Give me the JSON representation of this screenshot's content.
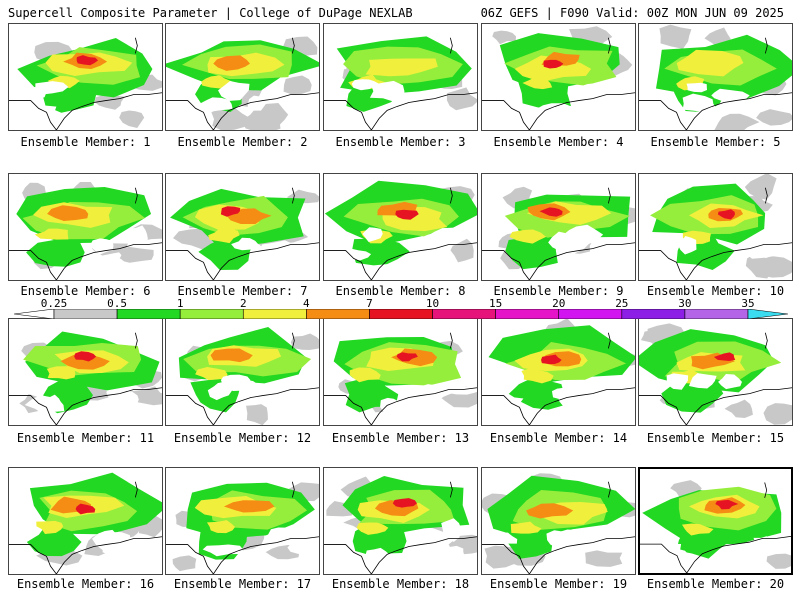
{
  "header": {
    "title": "Supercell Composite Parameter | College of DuPage NEXLAB",
    "run_info": "06Z GEFS | F090 Valid: 00Z MON JUN 09 2025"
  },
  "colors": {
    "very_low": "#c8c8c8",
    "low": "#22d822",
    "low_mid": "#96ee3c",
    "mid": "#f0f03c",
    "high": "#f58c14",
    "very_high": "#e61423",
    "border_line": "#000000"
  },
  "colorbar": {
    "thresholds": [
      "0.25",
      "0.5",
      "1",
      "2",
      "4",
      "7",
      "10",
      "15",
      "20",
      "25",
      "30",
      "35"
    ],
    "segment_colors": [
      "#ffffff",
      "#c8c8c8",
      "#22d822",
      "#96ee3c",
      "#f0f03c",
      "#f58c14",
      "#e61423",
      "#e6147a",
      "#e614c8",
      "#d214f0",
      "#8c1ee6",
      "#b464e6",
      "#3cdcf0"
    ]
  },
  "members": [
    {
      "label": "Ensemble Member: 1",
      "intensity": 4
    },
    {
      "label": "Ensemble Member: 2",
      "intensity": 3
    },
    {
      "label": "Ensemble Member: 3",
      "intensity": 2
    },
    {
      "label": "Ensemble Member: 4",
      "intensity": 4
    },
    {
      "label": "Ensemble Member: 5",
      "intensity": 2
    },
    {
      "label": "Ensemble Member: 6",
      "intensity": 3
    },
    {
      "label": "Ensemble Member: 7",
      "intensity": 4
    },
    {
      "label": "Ensemble Member: 8",
      "intensity": 4
    },
    {
      "label": "Ensemble Member: 9",
      "intensity": 4
    },
    {
      "label": "Ensemble Member: 10",
      "intensity": 4
    },
    {
      "label": "Ensemble Member: 11",
      "intensity": 4
    },
    {
      "label": "Ensemble Member: 12",
      "intensity": 3
    },
    {
      "label": "Ensemble Member: 13",
      "intensity": 4
    },
    {
      "label": "Ensemble Member: 14",
      "intensity": 4
    },
    {
      "label": "Ensemble Member: 15",
      "intensity": 4
    },
    {
      "label": "Ensemble Member: 16",
      "intensity": 4
    },
    {
      "label": "Ensemble Member: 17",
      "intensity": 3
    },
    {
      "label": "Ensemble Member: 18",
      "intensity": 4
    },
    {
      "label": "Ensemble Member: 19",
      "intensity": 3
    },
    {
      "label": "Ensemble Member: 20",
      "intensity": 4
    }
  ],
  "selected_member": 20
}
